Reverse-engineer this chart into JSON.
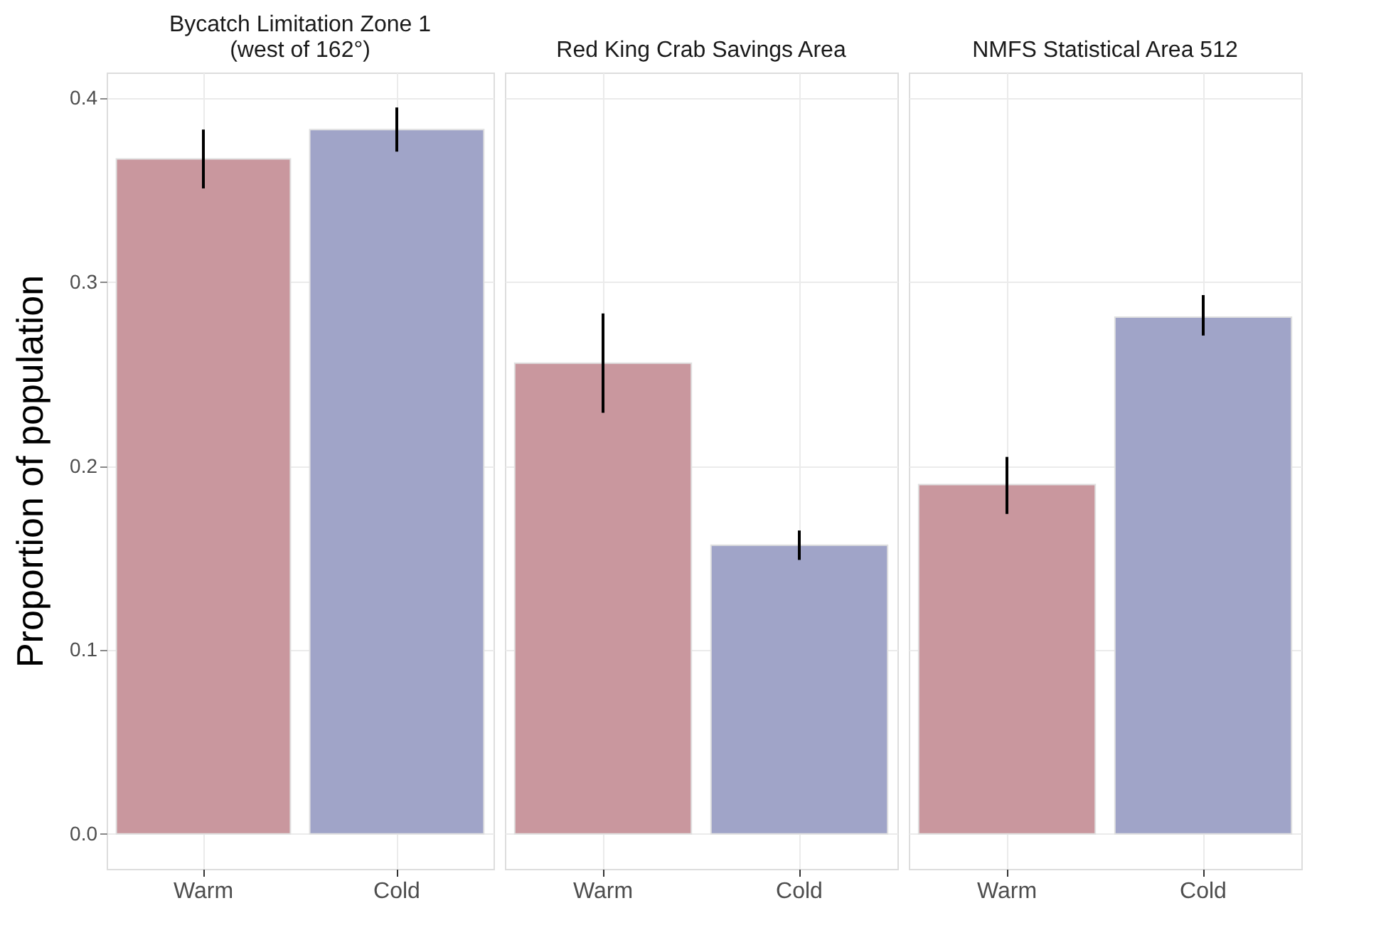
{
  "chart_data": [
    {
      "type": "bar",
      "title": "Bycatch Limitation Zone 1\n(west of 162°)",
      "ylabel": "Proportion of population",
      "categories": [
        "Warm",
        "Cold"
      ],
      "values": [
        0.367,
        0.383
      ],
      "colors": [
        "#c9979e",
        "#a0a4c8"
      ],
      "errors": [
        [
          0.351,
          0.383
        ],
        [
          0.371,
          0.395
        ]
      ],
      "ylim": [
        -0.019,
        0.414
      ],
      "yticks": [
        {
          "value": 0,
          "label": "0.0"
        },
        0.1,
        0.2,
        0.3,
        0.4
      ],
      "grid": true
    },
    {
      "type": "bar",
      "title": "Red King Crab Savings Area",
      "categories": [
        "Warm",
        "Cold"
      ],
      "values": [
        0.256,
        0.157
      ],
      "colors": [
        "#c9979e",
        "#a0a4c8"
      ],
      "errors": [
        [
          0.229,
          0.283
        ],
        [
          0.149,
          0.165
        ]
      ],
      "ylim": [
        -0.019,
        0.414
      ],
      "yticks": [
        0,
        0.1,
        0.2,
        0.3,
        0.4
      ],
      "grid": true,
      "tick_labels": "x"
    },
    {
      "type": "bar",
      "title": "NMFS Statistical Area 512",
      "categories": [
        "Warm",
        "Cold"
      ],
      "values": [
        0.19,
        0.281
      ],
      "colors": [
        "#c9979e",
        "#a0a4c8"
      ],
      "errors": [
        [
          0.174,
          0.205
        ],
        [
          0.271,
          0.293
        ]
      ],
      "ylim": [
        -0.019,
        0.414
      ],
      "yticks": [
        0,
        0.1,
        0.2,
        0.3,
        0.4
      ],
      "grid": true,
      "tick_labels": "x"
    }
  ]
}
